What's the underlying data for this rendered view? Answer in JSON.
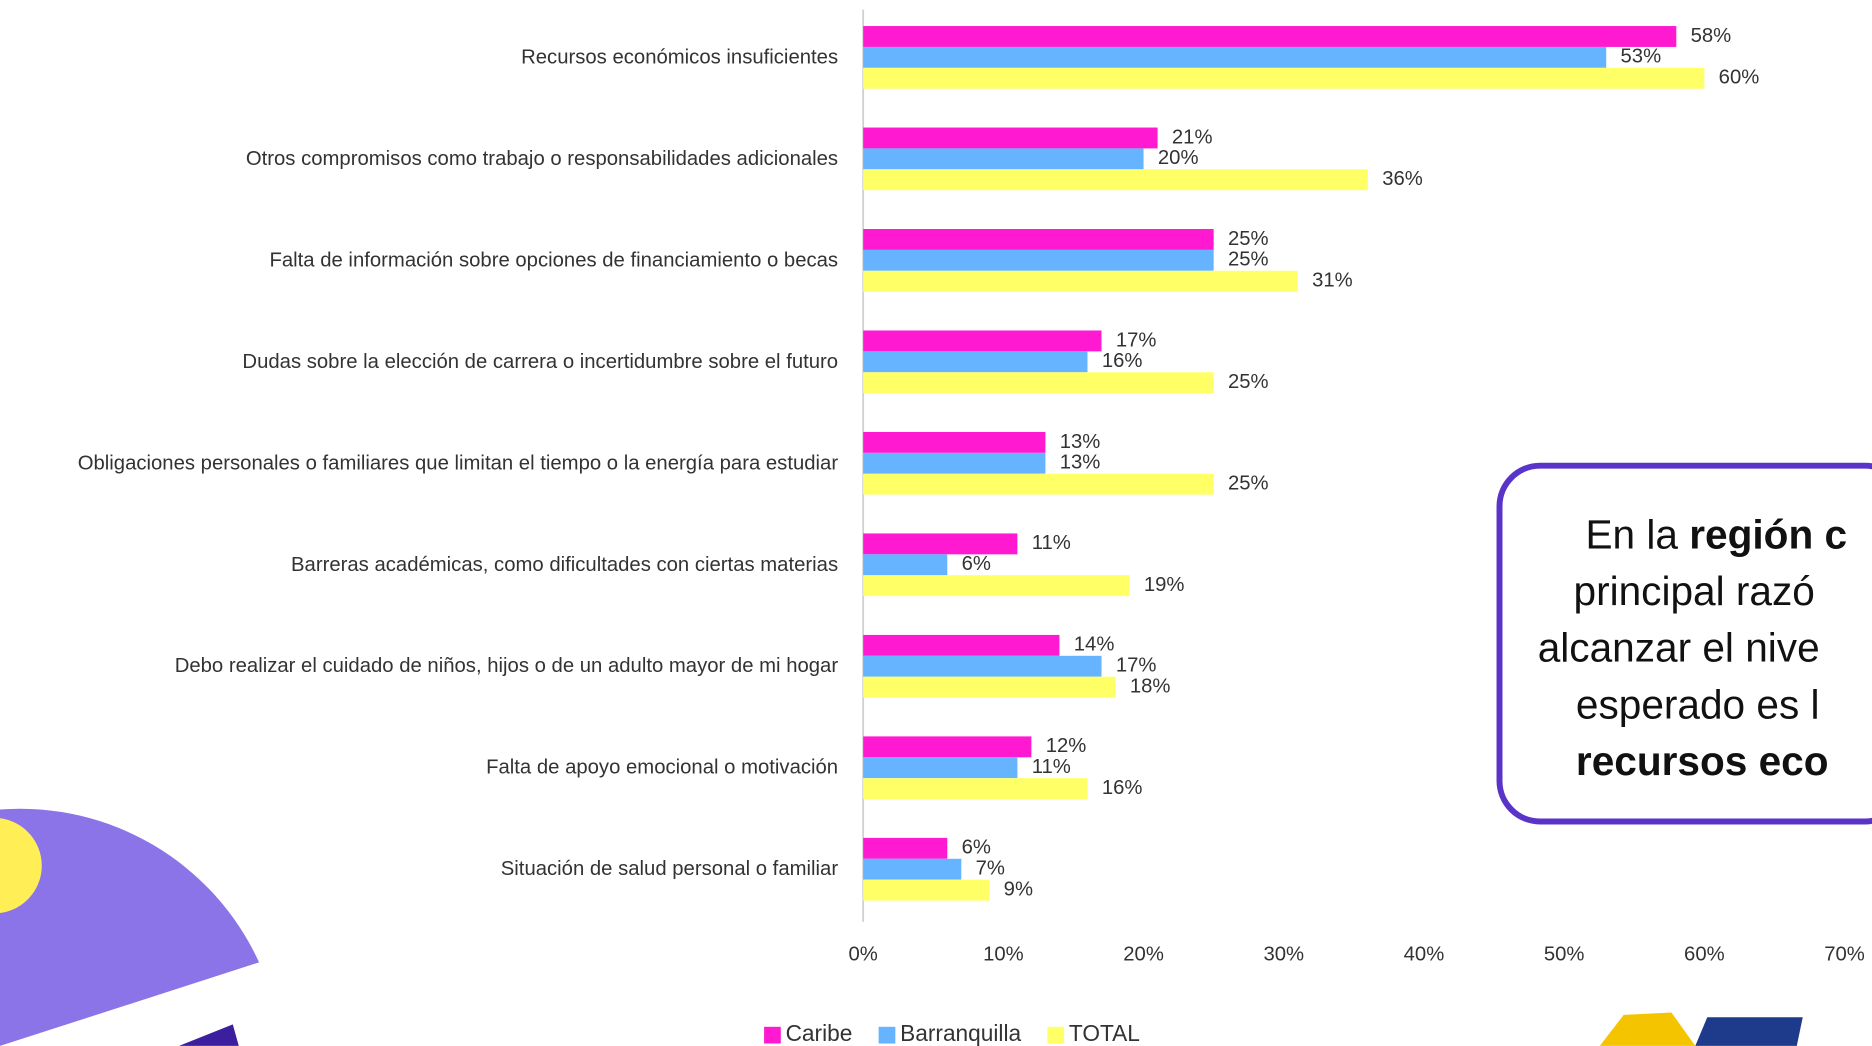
{
  "chart_data": {
    "type": "hbar",
    "categories": [
      "Recursos económicos insuficientes",
      "Otros compromisos como trabajo o responsabilidades adicionales",
      "Falta de información sobre opciones de financiamiento o becas",
      "Dudas sobre la elección de carrera o incertidumbre sobre el futuro",
      "Obligaciones personales o familiares que limitan el tiempo o la energía para estudiar",
      "Barreras académicas, como dificultades con ciertas materias",
      "Debo realizar el cuidado de niños, hijos o de un adulto mayor de mi hogar",
      "Falta de apoyo emocional o motivación",
      "Situación de salud personal o familiar"
    ],
    "series": [
      {
        "name": "Caribe",
        "color": "#ff1ad1",
        "values": [
          58,
          21,
          25,
          17,
          13,
          11,
          14,
          12,
          6
        ],
        "value_labels": [
          "58%",
          "21%",
          "25%",
          "17%",
          "13%",
          "11%",
          "14%",
          "12%",
          "6%"
        ]
      },
      {
        "name": "Barranquilla",
        "color": "#66b3ff",
        "values": [
          53,
          20,
          25,
          16,
          13,
          6,
          17,
          11,
          7
        ],
        "value_labels": [
          "53%",
          "20%",
          "25%",
          "16%",
          "13%",
          "6%",
          "17%",
          "11%",
          "7%"
        ]
      },
      {
        "name": "TOTAL",
        "color": "#ffff66",
        "values": [
          60,
          36,
          31,
          25,
          25,
          19,
          18,
          16,
          9
        ],
        "value_labels": [
          "60%",
          "36%",
          "31%",
          "25%",
          "25%",
          "19%",
          "18%",
          "16%",
          "9%"
        ]
      }
    ],
    "xlim": [
      0,
      70
    ],
    "xticks": [
      {
        "value": 0,
        "label": "0%"
      },
      {
        "value": 10,
        "label": "10%"
      },
      {
        "value": 20,
        "label": "20%"
      },
      {
        "value": 30,
        "label": "30%"
      },
      {
        "value": 40,
        "label": "40%"
      },
      {
        "value": 50,
        "label": "50%"
      },
      {
        "value": 60,
        "label": "60%"
      },
      {
        "value": 70,
        "label": "70%"
      }
    ],
    "legend": "bottom"
  },
  "annotation": {
    "lines": [
      [
        {
          "text": "En la "
        },
        {
          "text": "región c",
          "bold": true
        }
      ],
      [
        {
          "text": "principal razó"
        }
      ],
      [
        {
          "text": "alcanzar el nive"
        }
      ],
      [
        {
          "text": "esperado es l"
        }
      ],
      [
        {
          "text": "recursos eco",
          "bold": true
        }
      ]
    ]
  }
}
